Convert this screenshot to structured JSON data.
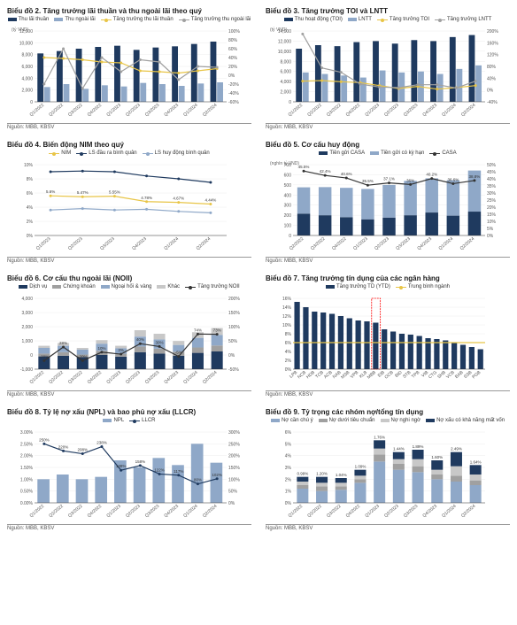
{
  "colors": {
    "dark_navy": "#1f3a5f",
    "light_blue": "#8fa8c8",
    "grey": "#a0a0a0",
    "yellow": "#e8c547",
    "light_grey": "#c8c8c8",
    "axis": "#999"
  },
  "source_text": "Nguồn: MBB, KBSV",
  "charts": [
    {
      "id": "c2",
      "title": "Biểu đồ 2. Tăng trưởng lãi thuần và thu ngoài lãi theo quý",
      "y_left_label": "(tỷ VND)",
      "legend": [
        {
          "label": "Thu lãi thuần",
          "type": "bar",
          "color": "#1f3a5f"
        },
        {
          "label": "Thu ngoài lãi",
          "type": "bar",
          "color": "#8fa8c8"
        },
        {
          "label": "Tăng trưởng thu lãi thuần",
          "type": "line",
          "color": "#e8c547"
        },
        {
          "label": "Tăng trưởng thu ngoài lãi",
          "type": "line",
          "color": "#a0a0a0"
        }
      ],
      "x": [
        "Q1/2022",
        "Q2/2022",
        "Q3/2022",
        "Q4/2022",
        "Q1/2023",
        "Q2/2023",
        "Q3/2023",
        "Q4/2023",
        "Q1/2024",
        "Q2/2024"
      ],
      "bars": [
        {
          "color": "#1f3a5f",
          "values": [
            8200,
            8600,
            9000,
            9300,
            9500,
            8800,
            9200,
            9400,
            9800,
            10200
          ]
        },
        {
          "color": "#8fa8c8",
          "values": [
            2500,
            3000,
            2200,
            2800,
            2600,
            3200,
            3000,
            2700,
            3100,
            3300
          ]
        }
      ],
      "y_left": {
        "min": 0,
        "max": 12000,
        "step": 2000
      },
      "y_right": {
        "min": -60,
        "max": 100,
        "step": 20,
        "suffix": "%"
      },
      "lines": [
        {
          "color": "#e8c547",
          "values": [
            40,
            38,
            35,
            30,
            28,
            10,
            8,
            5,
            10,
            15
          ]
        },
        {
          "color": "#a0a0a0",
          "values": [
            -20,
            60,
            -30,
            40,
            8,
            35,
            30,
            -10,
            20,
            18
          ]
        }
      ]
    },
    {
      "id": "c3",
      "title": "Biểu đồ 3. Tăng trưởng TOI và LNTT",
      "y_left_label": "(tỷ VND)",
      "legend": [
        {
          "label": "Thu hoạt động (TOI)",
          "type": "bar",
          "color": "#1f3a5f"
        },
        {
          "label": "LNTT",
          "type": "bar",
          "color": "#8fa8c8"
        },
        {
          "label": "Tăng trưởng TOI",
          "type": "line",
          "color": "#e8c547"
        },
        {
          "label": "Tăng trưởng LNTT",
          "type": "line",
          "color": "#a0a0a0"
        }
      ],
      "x": [
        "Q1/2022",
        "Q2/2022",
        "Q3/2022",
        "Q4/2022",
        "Q1/2023",
        "Q2/2023",
        "Q3/2023",
        "Q4/2023",
        "Q1/2024",
        "Q2/2024"
      ],
      "bars": [
        {
          "color": "#1f3a5f",
          "values": [
            10500,
            11200,
            11000,
            11800,
            12000,
            11500,
            12200,
            12000,
            12800,
            13200
          ]
        },
        {
          "color": "#8fa8c8",
          "values": [
            5800,
            5500,
            5200,
            4800,
            6200,
            5800,
            6000,
            5500,
            6500,
            7200
          ]
        }
      ],
      "y_left": {
        "min": 0,
        "max": 14000,
        "step": 2000
      },
      "y_right": {
        "min": -40,
        "max": 200,
        "step": 40,
        "suffix": "%"
      },
      "lines": [
        {
          "color": "#e8c547",
          "values": [
            30,
            32,
            28,
            25,
            15,
            5,
            12,
            3,
            8,
            15
          ]
        },
        {
          "color": "#a0a0a0",
          "values": [
            190,
            75,
            60,
            20,
            10,
            8,
            18,
            18,
            7,
            30
          ]
        }
      ]
    },
    {
      "id": "c4",
      "title": "Biểu đồ 4. Biến động NIM theo quý",
      "legend": [
        {
          "label": "NIM",
          "type": "line",
          "color": "#e8c547"
        },
        {
          "label": "LS đầu ra bình quân",
          "type": "line",
          "color": "#1f3a5f"
        },
        {
          "label": "LS huy động bình quân",
          "type": "line",
          "color": "#8fa8c8"
        }
      ],
      "x": [
        "Q1/2023",
        "Q2/2023",
        "Q3/2023",
        "Q4/2023",
        "Q1/2024",
        "Q2/2024"
      ],
      "y_left": {
        "min": 0,
        "max": 10,
        "step": 2,
        "suffix": "%"
      },
      "lines": [
        {
          "color": "#e8c547",
          "values": [
            5.6,
            5.47,
            5.55,
            4.78,
            4.67,
            4.44
          ],
          "show_labels": true,
          "label_suffix": "%"
        },
        {
          "color": "#1f3a5f",
          "values": [
            9.0,
            9.1,
            9.0,
            8.4,
            8.0,
            7.5
          ]
        },
        {
          "color": "#8fa8c8",
          "values": [
            3.6,
            3.8,
            3.6,
            3.7,
            3.4,
            3.2
          ]
        }
      ]
    },
    {
      "id": "c5",
      "title": "Biểu đồ 5. Cơ cấu huy động",
      "y_left_label": "(nghìn tỷ VND)",
      "legend": [
        {
          "label": "Tiền gửi CASA",
          "type": "bar",
          "color": "#1f3a5f"
        },
        {
          "label": "Tiền gửi có kỳ hạn",
          "type": "bar",
          "color": "#8fa8c8"
        },
        {
          "label": "CASA",
          "type": "line",
          "color": "#333"
        }
      ],
      "x": [
        "Q2/2022",
        "Q3/2022",
        "Q4/2022",
        "Q1/2023",
        "Q2/2023",
        "Q3/2023",
        "Q4/2023",
        "Q1/2024",
        "Q2/2024"
      ],
      "bars_stacked": [
        {
          "color": "#1f3a5f",
          "values": [
            216,
            200,
            181,
            160,
            177,
            200,
            227,
            196,
            236
          ]
        },
        {
          "color": "#8fa8c8",
          "values": [
            260,
            278,
            290,
            300,
            322,
            340,
            338,
            350,
            406
          ]
        }
      ],
      "y_left": {
        "min": 0,
        "max": 700,
        "step": 100
      },
      "y_right": {
        "min": 0,
        "max": 50,
        "step": 5,
        "suffix": "%"
      },
      "lines": [
        {
          "color": "#333",
          "values": [
            45.5,
            42.4,
            40.6,
            35.5,
            37.1,
            36.0,
            40.2,
            36.6,
            38.8
          ],
          "show_labels": true,
          "label_suffix": "%"
        }
      ]
    },
    {
      "id": "c6",
      "title": "Biểu đồ 6. Cơ cấu thu ngoài lãi (NOII)",
      "legend": [
        {
          "label": "Dịch vụ",
          "type": "bar",
          "color": "#1f3a5f"
        },
        {
          "label": "Chứng khoán",
          "type": "bar",
          "color": "#a0a0a0"
        },
        {
          "label": "Ngoại hối & vàng",
          "type": "bar",
          "color": "#8fa8c8"
        },
        {
          "label": "Khác",
          "type": "bar",
          "color": "#c8c8c8"
        },
        {
          "label": "Tăng trưởng NOII",
          "type": "line",
          "color": "#333"
        }
      ],
      "x": [
        "Q1/2022",
        "Q2/2022",
        "Q3/2022",
        "Q4/2022",
        "Q1/2023",
        "Q2/2023",
        "Q3/2023",
        "Q4/2023",
        "Q1/2024",
        "Q2/2024"
      ],
      "bars_stacked": [
        {
          "color": "#1f3a5f",
          "values": [
            900,
            950,
            850,
            1000,
            880,
            1200,
            1100,
            950,
            1150,
            1250
          ]
        },
        {
          "color": "#a0a0a0",
          "values": [
            200,
            250,
            180,
            300,
            210,
            400,
            350,
            280,
            380,
            420
          ]
        },
        {
          "color": "#8fa8c8",
          "values": [
            400,
            450,
            350,
            500,
            380,
            700,
            650,
            480,
            680,
            750
          ]
        },
        {
          "color": "#c8c8c8",
          "values": [
            150,
            200,
            120,
            250,
            180,
            450,
            400,
            280,
            400,
            480
          ]
        }
      ],
      "y_left": {
        "min": -1000,
        "max": 4000,
        "step": 1000
      },
      "y_right": {
        "min": -50,
        "max": 200,
        "step": 50,
        "suffix": "%"
      },
      "lines": [
        {
          "color": "#333",
          "values": [
            -20,
            28,
            -20,
            10,
            3,
            40,
            30,
            -5,
            74,
            73
          ],
          "show_labels": true,
          "label_suffix": "%"
        }
      ]
    },
    {
      "id": "c7",
      "title": "Biểu đồ 7. Tăng trưởng tín dụng của các ngân hàng",
      "legend": [
        {
          "label": "Tăng trưởng TD (YTD)",
          "type": "bar",
          "color": "#1f3a5f"
        },
        {
          "label": "Trung bình ngành",
          "type": "line",
          "color": "#e8c547"
        }
      ],
      "x": [
        "LPB",
        "NCB",
        "HDB",
        "TCB",
        "ACB",
        "NAB",
        "MSB",
        "VPB",
        "KLB",
        "MBB",
        "EIB",
        "OCB",
        "BID",
        "STB",
        "TPB",
        "VIB",
        "CTG",
        "SHB",
        "VCB",
        "BAB",
        "SSB",
        "PGB"
      ],
      "bars": [
        {
          "color": "#1f3a5f",
          "values": [
            15.2,
            14.0,
            13.0,
            12.8,
            12.5,
            12.0,
            11.5,
            11.0,
            10.8,
            10.5,
            9.0,
            8.5,
            8.0,
            7.8,
            7.5,
            7.0,
            6.8,
            6.5,
            6.0,
            5.5,
            5.0,
            4.5
          ]
        }
      ],
      "y_left": {
        "min": 0,
        "max": 16,
        "step": 2,
        "suffix": "%"
      },
      "ref_line": {
        "color": "#e8c547",
        "value": 6
      },
      "highlight": "MBB"
    },
    {
      "id": "c8",
      "title": "Biểu đồ 8. Tỷ lệ nợ xấu (NPL) và bao phủ nợ xấu (LLCR)",
      "legend": [
        {
          "label": "NPL",
          "type": "bar",
          "color": "#8fa8c8"
        },
        {
          "label": "LLCR",
          "type": "line",
          "color": "#1f3a5f"
        }
      ],
      "x": [
        "Q1/2022",
        "Q2/2022",
        "Q3/2022",
        "Q4/2022",
        "Q1/2023",
        "Q2/2023",
        "Q3/2023",
        "Q4/2023",
        "Q1/2024",
        "Q2/2024"
      ],
      "bars": [
        {
          "color": "#8fa8c8",
          "values": [
            1.0,
            1.2,
            1.0,
            1.1,
            1.8,
            1.5,
            1.9,
            1.6,
            2.5,
            1.7
          ]
        }
      ],
      "y_left": {
        "min": 0,
        "max": 3,
        "step": 0.5,
        "suffix": "%"
      },
      "y_right": {
        "min": 0,
        "max": 300,
        "step": 50,
        "suffix": "%"
      },
      "lines": [
        {
          "color": "#1f3a5f",
          "values": [
            250,
            220,
            208,
            238,
            138,
            158,
            122,
            117,
            80,
            102
          ],
          "show_labels": true,
          "label_suffix": "%"
        }
      ]
    },
    {
      "id": "c9",
      "title": "Biểu đồ 9. Tỷ trọng các nhóm nợ/tổng tín dụng",
      "legend": [
        {
          "label": "Nợ cần chú ý",
          "type": "bar",
          "color": "#8fa8c8"
        },
        {
          "label": "Nợ dưới tiêu chuẩn",
          "type": "bar",
          "color": "#a0a0a0"
        },
        {
          "label": "Nợ nghi ngờ",
          "type": "bar",
          "color": "#c8c8c8"
        },
        {
          "label": "Nợ xấu có khả năng mất vốn",
          "type": "bar",
          "color": "#1f3a5f"
        }
      ],
      "x": [
        "Q1/2022",
        "Q2/2022",
        "Q3/2022",
        "Q4/2022",
        "Q1/2023",
        "Q2/2023",
        "Q3/2023",
        "Q4/2023",
        "Q1/2024",
        "Q2/2024"
      ],
      "bars_stacked": [
        {
          "color": "#8fa8c8",
          "values": [
            1.2,
            1.0,
            1.1,
            1.7,
            3.5,
            2.8,
            2.6,
            2.0,
            1.8,
            1.5
          ]
        },
        {
          "color": "#a0a0a0",
          "values": [
            0.3,
            0.4,
            0.3,
            0.3,
            0.6,
            0.5,
            0.5,
            0.4,
            0.5,
            0.4
          ]
        },
        {
          "color": "#c8c8c8",
          "values": [
            0.3,
            0.3,
            0.3,
            0.3,
            0.5,
            0.4,
            0.6,
            0.4,
            0.8,
            0.5
          ]
        },
        {
          "color": "#1f3a5f",
          "values": [
            0.4,
            0.5,
            0.4,
            0.5,
            0.7,
            0.6,
            0.8,
            0.8,
            1.2,
            0.8
          ]
        }
      ],
      "y_left": {
        "min": 0,
        "max": 6,
        "step": 1,
        "suffix": "%"
      },
      "top_labels": [
        "0.99%",
        "1.20%",
        "1.04%",
        "1.09%",
        "1.76%",
        "1.44%",
        "1.89%",
        "1.60%",
        "2.49%",
        "1.64%"
      ]
    }
  ]
}
